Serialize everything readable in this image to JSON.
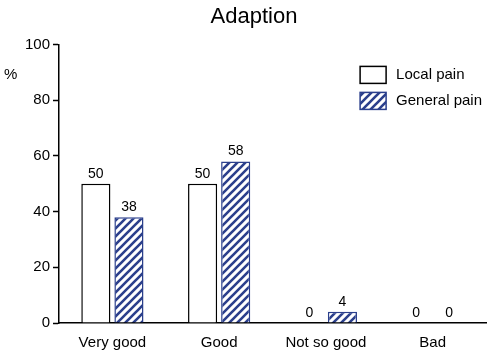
{
  "chart_data": {
    "type": "bar",
    "title": "Adaption",
    "y_label": "%",
    "categories": [
      "Very good",
      "Good",
      "Not so good",
      "Bad"
    ],
    "series": [
      {
        "name": "Local pain",
        "color": "#ffffff",
        "values": [
          50,
          50,
          0,
          0
        ]
      },
      {
        "name": "General pain",
        "color": "#2b3f8c",
        "marker": "hatch",
        "values": [
          38,
          58,
          4,
          0
        ]
      }
    ],
    "ylim": [
      0,
      100
    ],
    "yticks": [
      0,
      20,
      40,
      60,
      80,
      100
    ],
    "grid": false,
    "legend": "upper right",
    "data_labels": true
  }
}
